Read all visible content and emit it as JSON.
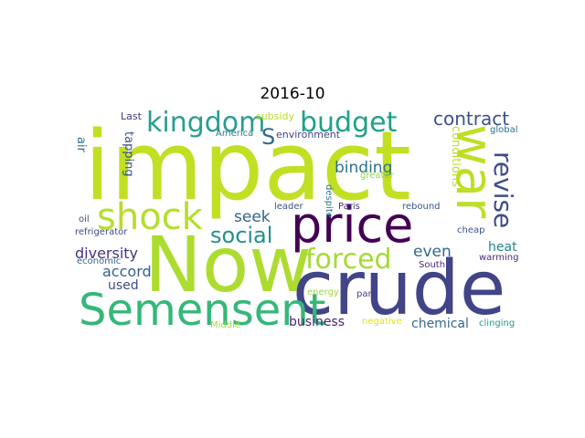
{
  "title": "2016-10",
  "words": [
    {
      "text": "impact",
      "color": "#c2df23"
    },
    {
      "text": "Now",
      "color": "#addc30"
    },
    {
      "text": "crude",
      "color": "#414487"
    },
    {
      "text": "price",
      "color": "#440154"
    },
    {
      "text": "Semensent",
      "color": "#35b779"
    },
    {
      "text": "war",
      "color": "#bddf26"
    },
    {
      "text": "shock",
      "color": "#b5de2b"
    },
    {
      "text": "kingdom",
      "color": "#2a9d8f"
    },
    {
      "text": "budget",
      "color": "#1fa187"
    },
    {
      "text": "forced",
      "color": "#a5db36"
    },
    {
      "text": "revise",
      "color": "#3e4c8a"
    },
    {
      "text": "social",
      "color": "#22908c"
    },
    {
      "text": "contract",
      "color": "#3b518b"
    },
    {
      "text": "S",
      "color": "#31688e"
    },
    {
      "text": "binding",
      "color": "#2c728e"
    },
    {
      "text": "seek",
      "color": "#33638d"
    },
    {
      "text": "even",
      "color": "#31688e"
    },
    {
      "text": "diversity",
      "color": "#46327e"
    },
    {
      "text": "accord",
      "color": "#355f8d"
    },
    {
      "text": "used",
      "color": "#3e4a89"
    },
    {
      "text": "business",
      "color": "#482475"
    },
    {
      "text": "chemical",
      "color": "#31688e"
    },
    {
      "text": "heat",
      "color": "#26828e"
    },
    {
      "text": "conditions",
      "color": "#b8de29"
    },
    {
      "text": "tapping",
      "color": "#3b528b"
    },
    {
      "text": "air",
      "color": "#2d708e"
    },
    {
      "text": "Last",
      "color": "#453781"
    },
    {
      "text": "subsidy",
      "color": "#b8de29"
    },
    {
      "text": "environment",
      "color": "#404387"
    },
    {
      "text": "America",
      "color": "#2a788e"
    },
    {
      "text": "greater",
      "color": "#90d743"
    },
    {
      "text": "global",
      "color": "#2c728e"
    },
    {
      "text": "leader",
      "color": "#3b528b"
    },
    {
      "text": "despite",
      "color": "#2a788e"
    },
    {
      "text": "Paris",
      "color": "#46327e"
    },
    {
      "text": "rebound",
      "color": "#39568c"
    },
    {
      "text": "oil",
      "color": "#3e4a89"
    },
    {
      "text": "refrigerator",
      "color": "#3e4989"
    },
    {
      "text": "cheap",
      "color": "#3b528b"
    },
    {
      "text": "economic",
      "color": "#31688e"
    },
    {
      "text": "South",
      "color": "#482878"
    },
    {
      "text": "warming",
      "color": "#472c7a"
    },
    {
      "text": "energy",
      "color": "#a0da39"
    },
    {
      "text": "part",
      "color": "#433e85"
    },
    {
      "text": "negative",
      "color": "#dde318"
    },
    {
      "text": "clinging",
      "color": "#1f9e89"
    },
    {
      "text": "Middle",
      "color": "#a5db36"
    }
  ]
}
